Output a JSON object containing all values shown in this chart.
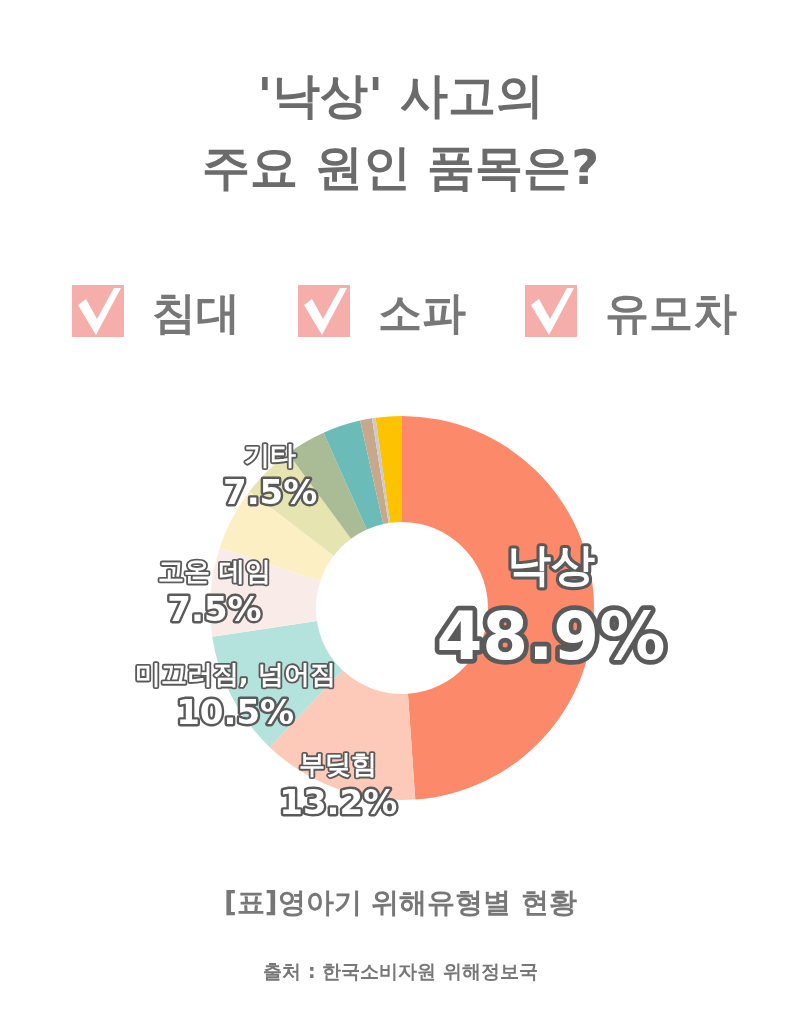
{
  "chart_data": {
    "type": "donut",
    "title": "'낙상' 사고의\n주요 원인 품목은?",
    "categories": [
      "낙상",
      "부딪힘",
      "미끄러짐, 넘어짐",
      "고온 데임",
      null,
      null,
      null,
      null,
      null,
      null,
      null
    ],
    "values": [
      48.9,
      13.2,
      10.5,
      7.5,
      5.3,
      4.5,
      3.4,
      3.2,
      1.0,
      0.3,
      2.2
    ],
    "colors": [
      "#fc8a6a",
      "#fdc9b9",
      "#b3e3dc",
      "#f9ece8",
      "#fcefc4",
      "#e6e4b0",
      "#a9bc95",
      "#6bbcb8",
      "#c8a88a",
      "#c9c9dc",
      "#fdc300"
    ],
    "value_labels": [
      "48.9%",
      "13.2%",
      "10.5%",
      "7.5%",
      null,
      null,
      null,
      null,
      null,
      null,
      null
    ],
    "annotations": [
      "침대",
      "소파",
      "유모차",
      "기타\n7.5%",
      "[표]영아기 위해유형별 현황",
      "출처 : 한국소비자원 위해정보국"
    ]
  }
}
